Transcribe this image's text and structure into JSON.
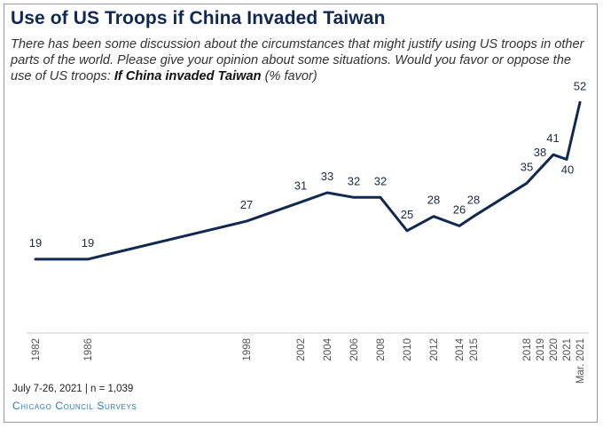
{
  "title": "Use of US Troops if China Invaded Taiwan",
  "subtitle_main": "There has been some discussion about the circumstances that might justify using US troops in other parts of the world. Please give your opinion about some situations. Would you favor or oppose the use of US troops: ",
  "subtitle_bold": "If China invaded Taiwan",
  "subtitle_end": " (% favor)",
  "footnote": "July 7-26, 2021 | n = 1,039",
  "source": "Chicago Council Surveys",
  "line_color": "#12294f",
  "chart_data": {
    "type": "line",
    "title": "Use of US Troops if China Invaded Taiwan",
    "ylabel": "",
    "xlabel": "",
    "ylim": [
      0,
      60
    ],
    "grid": false,
    "x": [
      "1982",
      "1986",
      "1998",
      "2002",
      "2004",
      "2006",
      "2008",
      "2010",
      "2012",
      "2014",
      "2015",
      "2018",
      "2019",
      "2020",
      "2021",
      "Mar. 2021"
    ],
    "series": [
      {
        "values": [
          19,
          19,
          27,
          31,
          33,
          32,
          32,
          25,
          28,
          26,
          28,
          35,
          38,
          41,
          40,
          52
        ]
      }
    ]
  }
}
